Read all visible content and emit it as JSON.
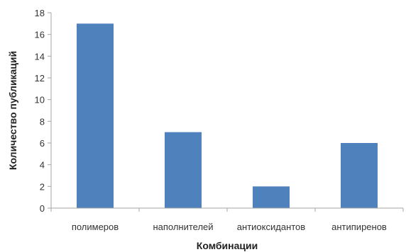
{
  "chart_data": {
    "type": "bar",
    "categories": [
      "полимеров",
      "наполнителей",
      "антиоксидантов",
      "антипиренов"
    ],
    "values": [
      17,
      7,
      2,
      6
    ],
    "xlabel": "Комбинации",
    "ylabel": "Количество публикаций",
    "ylim": [
      0,
      18
    ],
    "yticks": [
      0,
      2,
      4,
      6,
      8,
      10,
      12,
      14,
      16,
      18
    ],
    "grid": false,
    "legend": "none",
    "colors": {
      "bar": "#4f81bd",
      "axis": "#a6a6a6"
    }
  }
}
